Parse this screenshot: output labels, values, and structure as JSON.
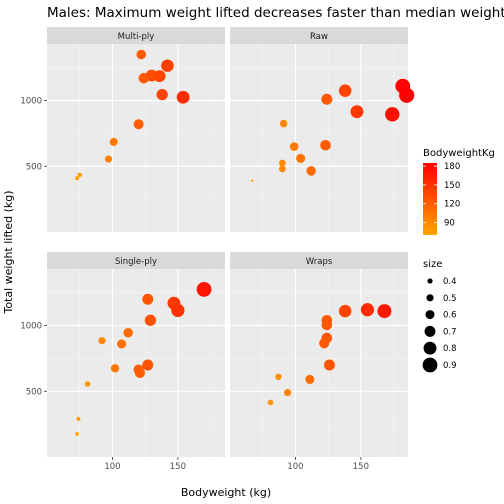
{
  "chart_data": {
    "type": "scatter",
    "title": "Males: Maximum weight lifted decreases faster than median weight lifted",
    "xlabel": "Bodyweight (kg)",
    "ylabel": "Total weight lifted (kg)",
    "x_ticks": [
      100,
      150
    ],
    "y_ticks": [
      500,
      1000
    ],
    "xlim": [
      50,
      186
    ],
    "ylim": [
      0,
      1430
    ],
    "grid": true,
    "legend_placement": "right",
    "color_legend": {
      "title": "BodyweightKg",
      "ticks": [
        180,
        150,
        120,
        90
      ],
      "range": [
        70,
        185
      ],
      "low_color": "#ffa500",
      "high_color": "#ff0000"
    },
    "size_legend": {
      "title": "size",
      "values": [
        0.4,
        0.5,
        0.6,
        0.7,
        0.8,
        0.9
      ]
    },
    "panels": [
      {
        "label": "Multi-ply",
        "points": [
          {
            "x": 73,
            "y": 410,
            "size": 0.35
          },
          {
            "x": 75,
            "y": 435,
            "size": 0.36
          },
          {
            "x": 97,
            "y": 555,
            "size": 0.5
          },
          {
            "x": 101,
            "y": 685,
            "size": 0.55
          },
          {
            "x": 120,
            "y": 820,
            "size": 0.65
          },
          {
            "x": 122,
            "y": 1350,
            "size": 0.63
          },
          {
            "x": 124,
            "y": 1170,
            "size": 0.68
          },
          {
            "x": 130,
            "y": 1190,
            "size": 0.75
          },
          {
            "x": 136,
            "y": 1185,
            "size": 0.75
          },
          {
            "x": 138,
            "y": 1045,
            "size": 0.72
          },
          {
            "x": 142,
            "y": 1265,
            "size": 0.78
          },
          {
            "x": 154,
            "y": 1025,
            "size": 0.8
          }
        ]
      },
      {
        "label": "Raw",
        "points": [
          {
            "x": 67,
            "y": 390,
            "size": 0.25
          },
          {
            "x": 90,
            "y": 480,
            "size": 0.48
          },
          {
            "x": 90,
            "y": 525,
            "size": 0.48
          },
          {
            "x": 91,
            "y": 825,
            "size": 0.52
          },
          {
            "x": 99,
            "y": 650,
            "size": 0.58
          },
          {
            "x": 104,
            "y": 560,
            "size": 0.6
          },
          {
            "x": 112,
            "y": 465,
            "size": 0.62
          },
          {
            "x": 123,
            "y": 660,
            "size": 0.68
          },
          {
            "x": 124,
            "y": 1010,
            "size": 0.7
          },
          {
            "x": 138,
            "y": 1075,
            "size": 0.78
          },
          {
            "x": 147,
            "y": 915,
            "size": 0.8
          },
          {
            "x": 174,
            "y": 895,
            "size": 0.88
          },
          {
            "x": 182,
            "y": 1110,
            "size": 0.9
          },
          {
            "x": 185,
            "y": 1040,
            "size": 0.92
          }
        ]
      },
      {
        "label": "Single-ply",
        "points": [
          {
            "x": 73,
            "y": 175,
            "size": 0.32
          },
          {
            "x": 74,
            "y": 290,
            "size": 0.34
          },
          {
            "x": 81,
            "y": 555,
            "size": 0.42
          },
          {
            "x": 92,
            "y": 885,
            "size": 0.5
          },
          {
            "x": 102,
            "y": 675,
            "size": 0.56
          },
          {
            "x": 107,
            "y": 860,
            "size": 0.6
          },
          {
            "x": 112,
            "y": 945,
            "size": 0.62
          },
          {
            "x": 120,
            "y": 665,
            "size": 0.66
          },
          {
            "x": 121,
            "y": 640,
            "size": 0.66
          },
          {
            "x": 127,
            "y": 1200,
            "size": 0.7
          },
          {
            "x": 127,
            "y": 700,
            "size": 0.7
          },
          {
            "x": 129,
            "y": 1040,
            "size": 0.72
          },
          {
            "x": 147,
            "y": 1170,
            "size": 0.8
          },
          {
            "x": 150,
            "y": 1115,
            "size": 0.82
          },
          {
            "x": 170,
            "y": 1275,
            "size": 0.9
          }
        ]
      },
      {
        "label": "Wraps",
        "points": [
          {
            "x": 81,
            "y": 415,
            "size": 0.42
          },
          {
            "x": 87,
            "y": 610,
            "size": 0.46
          },
          {
            "x": 94,
            "y": 490,
            "size": 0.5
          },
          {
            "x": 111,
            "y": 590,
            "size": 0.6
          },
          {
            "x": 122,
            "y": 865,
            "size": 0.66
          },
          {
            "x": 124,
            "y": 905,
            "size": 0.68
          },
          {
            "x": 124,
            "y": 1005,
            "size": 0.68
          },
          {
            "x": 124,
            "y": 1040,
            "size": 0.68
          },
          {
            "x": 126,
            "y": 700,
            "size": 0.7
          },
          {
            "x": 138,
            "y": 1110,
            "size": 0.78
          },
          {
            "x": 155,
            "y": 1120,
            "size": 0.82
          },
          {
            "x": 168,
            "y": 1110,
            "size": 0.86
          }
        ]
      }
    ]
  }
}
